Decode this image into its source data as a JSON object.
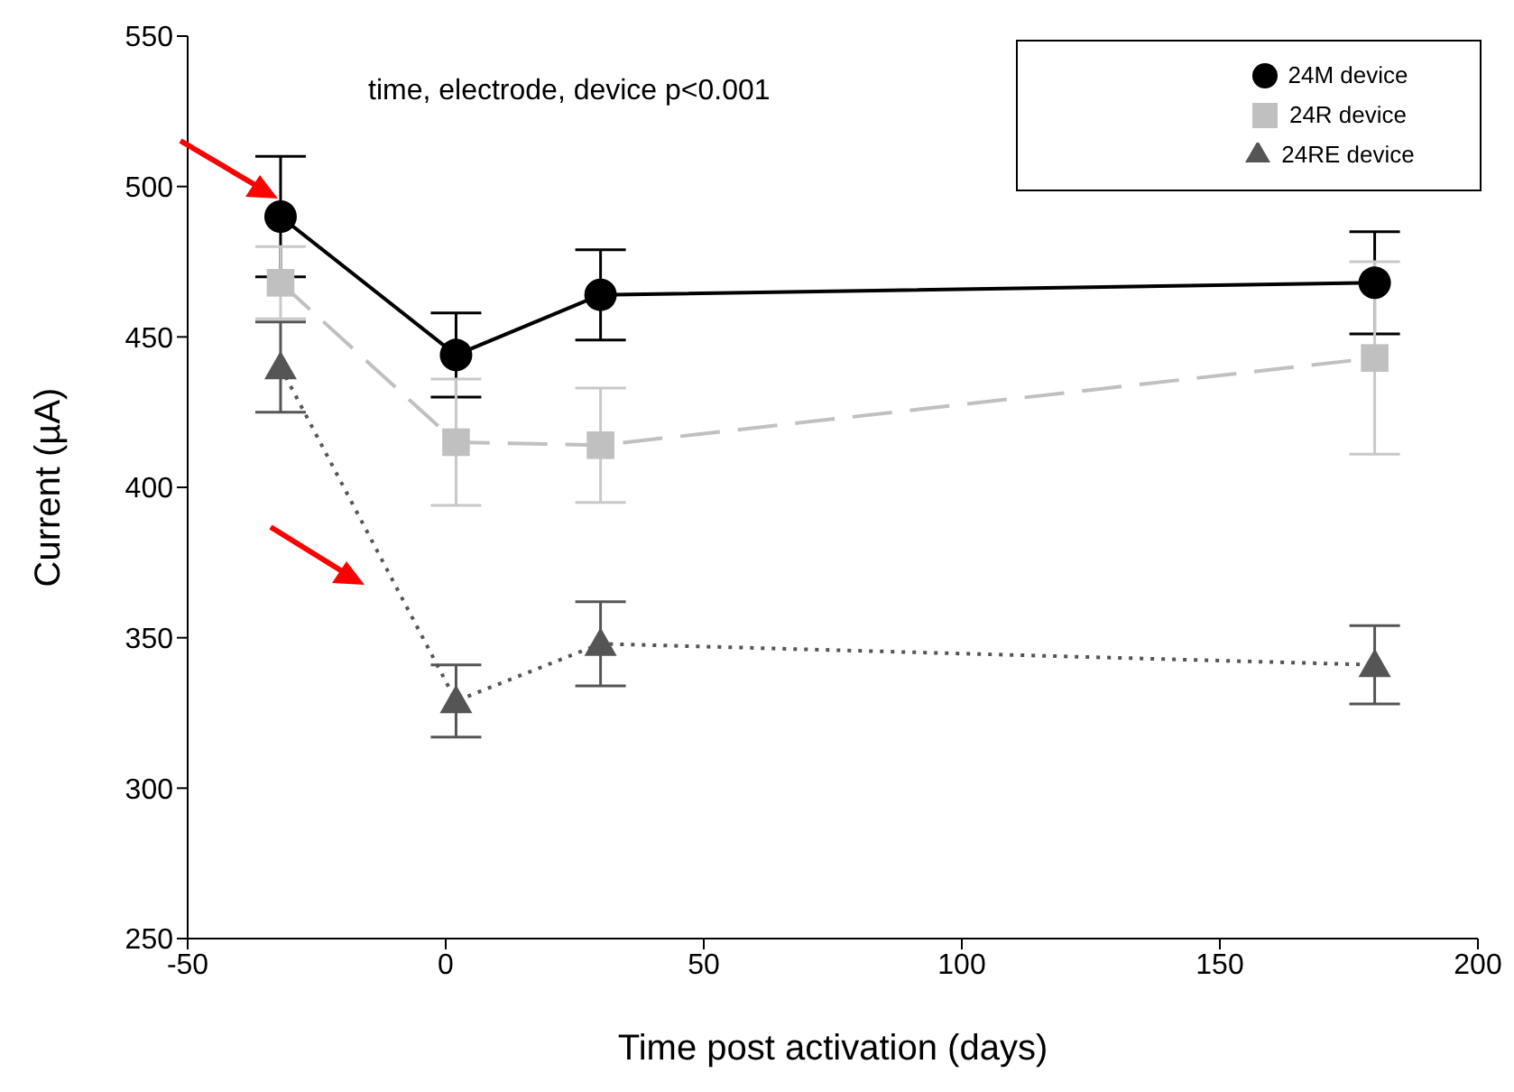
{
  "chart_data": {
    "type": "line",
    "xlabel": "Time post activation (days)",
    "ylabel": "Current (µA)",
    "x": [
      -32,
      2,
      30,
      180
    ],
    "xlim": [
      -50,
      200
    ],
    "xticks": [
      -50,
      0,
      50,
      100,
      150,
      200
    ],
    "ylim": [
      250,
      550
    ],
    "yticks": [
      250,
      300,
      350,
      400,
      450,
      500,
      550
    ],
    "grid": false,
    "legend": "top right",
    "annotations": [
      "time, electrode, device p<0.001"
    ],
    "series": [
      {
        "name": "24M device",
        "color": "#000000",
        "marker": "circle",
        "line_style": "solid",
        "values": [
          490,
          444,
          464,
          468
        ],
        "errors": [
          20,
          14,
          15,
          17
        ]
      },
      {
        "name": "24R device",
        "color": "#c0c0c0",
        "marker": "square",
        "line_style": "dashed",
        "values": [
          468,
          415,
          414,
          443
        ],
        "errors": [
          12,
          21,
          19,
          32
        ]
      },
      {
        "name": "24RE device",
        "color": "#555555",
        "marker": "triangle",
        "line_style": "dotted",
        "values": [
          440,
          329,
          348,
          341
        ],
        "errors": [
          15,
          12,
          14,
          13
        ]
      }
    ]
  }
}
